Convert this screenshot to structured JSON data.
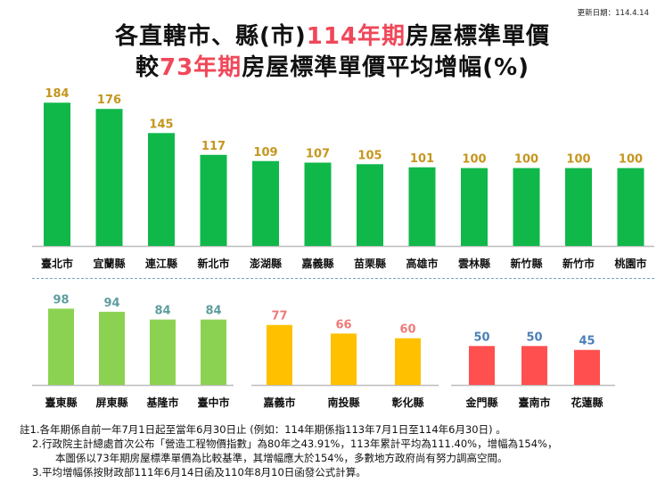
{
  "update_date": "更新日期：114.4.14",
  "title": {
    "line1_prefix": "各直轄市、縣(市)",
    "line1_highlight": "114年期",
    "line1_suffix": "房屋標準單價",
    "line2_prefix": "較",
    "line2_highlight": "73年期",
    "line2_suffix": "房屋標準單價平均增幅(%)"
  },
  "colors": {
    "green": "#10b84a",
    "light_green": "#8cd252",
    "yellow": "#ffc000",
    "red": "#ff4f4f",
    "label_gold": "#c5961e",
    "label_teal": "#5f9ea0",
    "label_salmon": "#f07a7a",
    "label_blue": "#4a7fb8",
    "title_highlight": "#f0485a"
  },
  "chart_data": [
    {
      "type": "bar",
      "categories": [
        "臺北市",
        "宜蘭縣",
        "連江縣",
        "新北市",
        "澎湖縣",
        "嘉義縣",
        "苗栗縣",
        "高雄市",
        "雲林縣",
        "新竹縣",
        "新竹市",
        "桃園市"
      ],
      "values": [
        184,
        176,
        145,
        117,
        109,
        107,
        105,
        101,
        100,
        100,
        100,
        100
      ],
      "color": "#10b84a",
      "label_color": "#c5961e",
      "ylim": [
        0,
        190
      ],
      "title": "",
      "xlabel": "",
      "ylabel": ""
    },
    {
      "type": "bar",
      "categories": [
        "臺東縣",
        "屏東縣",
        "基隆市",
        "臺中市"
      ],
      "values": [
        98,
        94,
        84,
        84
      ],
      "color": "#8cd252",
      "label_color": "#5f9ea0",
      "ylim": [
        0,
        190
      ],
      "title": "",
      "xlabel": "",
      "ylabel": ""
    },
    {
      "type": "bar",
      "categories": [
        "嘉義市",
        "南投縣",
        "彰化縣"
      ],
      "values": [
        77,
        66,
        60
      ],
      "color": "#ffc000",
      "label_color": "#f07a7a",
      "ylim": [
        0,
        190
      ],
      "title": "",
      "xlabel": "",
      "ylabel": ""
    },
    {
      "type": "bar",
      "categories": [
        "金門縣",
        "臺南市",
        "花蓮縣"
      ],
      "values": [
        50,
        50,
        45
      ],
      "color": "#ff4f4f",
      "label_color": "#4a7fb8",
      "ylim": [
        0,
        190
      ],
      "title": "",
      "xlabel": "",
      "ylabel": ""
    }
  ],
  "notes": [
    "註1.各年期係自前一年7月1日起至當年6月30日止 (例如：114年期係指113年7月1日至114年6月30日) 。",
    "2.行政院主計總處首次公布「營造工程物價指數」為80年之43.91%，113年累計平均為111.40%，增幅為154%，",
    "本圖係以73年期房屋標準單價為比較基準，其增幅應大於154%，多數地方政府尚有努力調高空間。",
    "3.平均增幅係按財政部111年6月14日函及110年8月10日函發公式計算。"
  ]
}
